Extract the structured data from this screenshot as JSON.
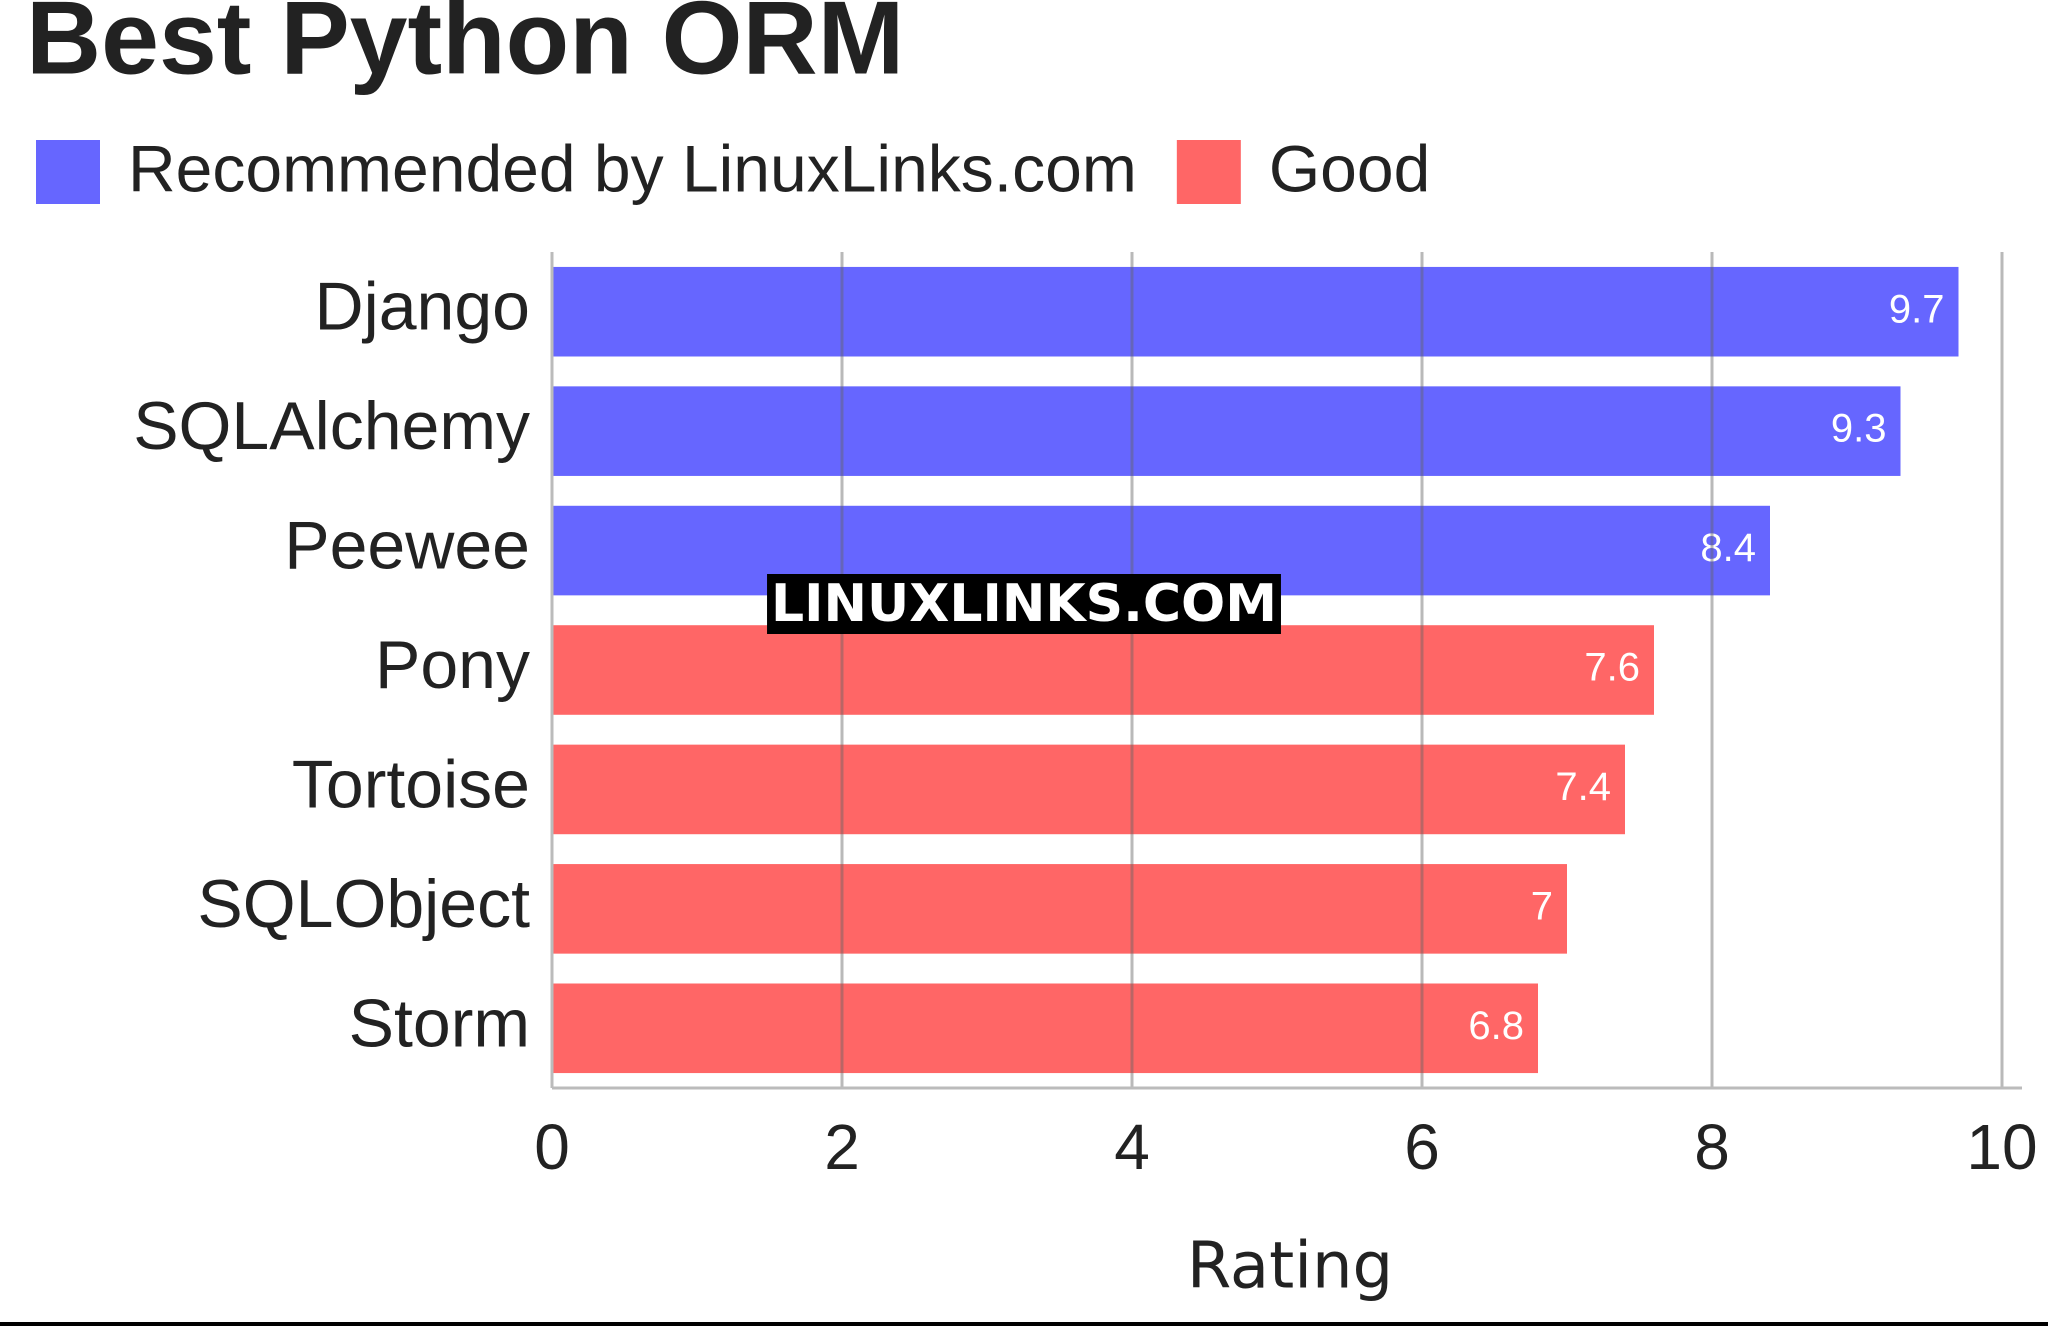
{
  "chart_data": {
    "type": "hbar",
    "title": "Best Python ORM",
    "categories": [
      "Django",
      "SQLAlchemy",
      "Peewee",
      "Pony",
      "Tortoise",
      "SQLObject",
      "Storm"
    ],
    "series": [
      {
        "name": "Recommended by LinuxLinks.com",
        "color": "#6666ff",
        "values": [
          9.7,
          9.3,
          8.4,
          null,
          null,
          null,
          null
        ]
      },
      {
        "name": "Good",
        "color": "#ff6666",
        "values": [
          null,
          null,
          null,
          7.6,
          7.4,
          7,
          6.8
        ]
      }
    ],
    "xlabel": "Rating",
    "xlim": [
      0,
      10
    ],
    "xticks": [
      0,
      2,
      4,
      6,
      8,
      10
    ],
    "grid": true,
    "watermark": "LINUXLINKS.COM"
  }
}
